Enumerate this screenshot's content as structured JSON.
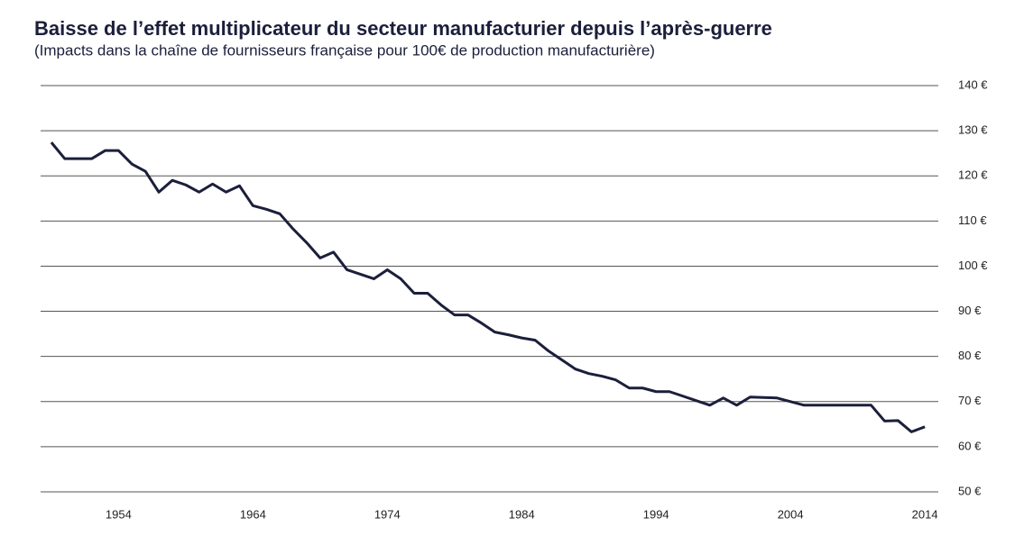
{
  "chart_data": {
    "type": "line",
    "title": "Baisse de l’effet multiplicateur du secteur manufacturier depuis l’après-guerre",
    "subtitle": "(Impacts dans la chaîne de fournisseurs française pour 100€  de production manufacturière)",
    "x": [
      1949,
      1950,
      1951,
      1952,
      1953,
      1954,
      1955,
      1956,
      1957,
      1958,
      1959,
      1960,
      1961,
      1962,
      1963,
      1964,
      1965,
      1966,
      1967,
      1968,
      1969,
      1970,
      1971,
      1972,
      1973,
      1974,
      1975,
      1976,
      1977,
      1978,
      1979,
      1980,
      1981,
      1982,
      1983,
      1984,
      1985,
      1986,
      1987,
      1988,
      1989,
      1990,
      1991,
      1992,
      1993,
      1994,
      1995,
      1996,
      1997,
      1998,
      1999,
      2000,
      2001,
      2002,
      2003,
      2004,
      2005,
      2006,
      2007,
      2008,
      2009,
      2010,
      2011,
      2012,
      2013,
      2014
    ],
    "series": [
      {
        "name": "Impacts",
        "color": "#1b1f3b",
        "values": [
          127.4,
          123.8,
          123.8,
          123.8,
          125.6,
          125.6,
          122.6,
          121,
          116.4,
          119,
          118,
          116.4,
          118.2,
          116.4,
          117.8,
          113.4,
          112.6,
          111.6,
          108.2,
          105.2,
          101.8,
          103.1,
          99.2,
          98.2,
          97.2,
          99.2,
          97.2,
          94,
          94,
          91.4,
          89.2,
          89.2,
          87.4,
          85.4,
          84.8,
          84.1,
          83.6,
          81.2,
          79.2,
          77.2,
          76.2,
          75.6,
          74.8,
          73,
          73,
          72.2,
          72.2,
          71.2,
          70.2,
          69.2,
          70.8,
          69.2,
          71,
          70.9,
          70.8,
          70,
          69.2,
          69.2,
          69.2,
          69.2,
          69.2,
          69.2,
          65.7,
          65.8,
          63.3,
          64.4
        ]
      }
    ],
    "xlim": [
      1948.2,
      2015
    ],
    "xticks": [
      1954,
      1964,
      1974,
      1984,
      1994,
      2004,
      2014
    ],
    "ylim": [
      50,
      140
    ],
    "yticks": [
      {
        "value": 50,
        "label": "50 €"
      },
      {
        "value": 60,
        "label": "60 €"
      },
      {
        "value": 70,
        "label": "70 €"
      },
      {
        "value": 80,
        "label": "80 €"
      },
      {
        "value": 90,
        "label": "90 €"
      },
      {
        "value": 100,
        "label": "100 €"
      },
      {
        "value": 110,
        "label": "110 €"
      },
      {
        "value": 120,
        "label": "120 €"
      },
      {
        "value": 130,
        "label": "130 €"
      },
      {
        "value": 140,
        "label": "140 €"
      }
    ],
    "grid": true
  }
}
